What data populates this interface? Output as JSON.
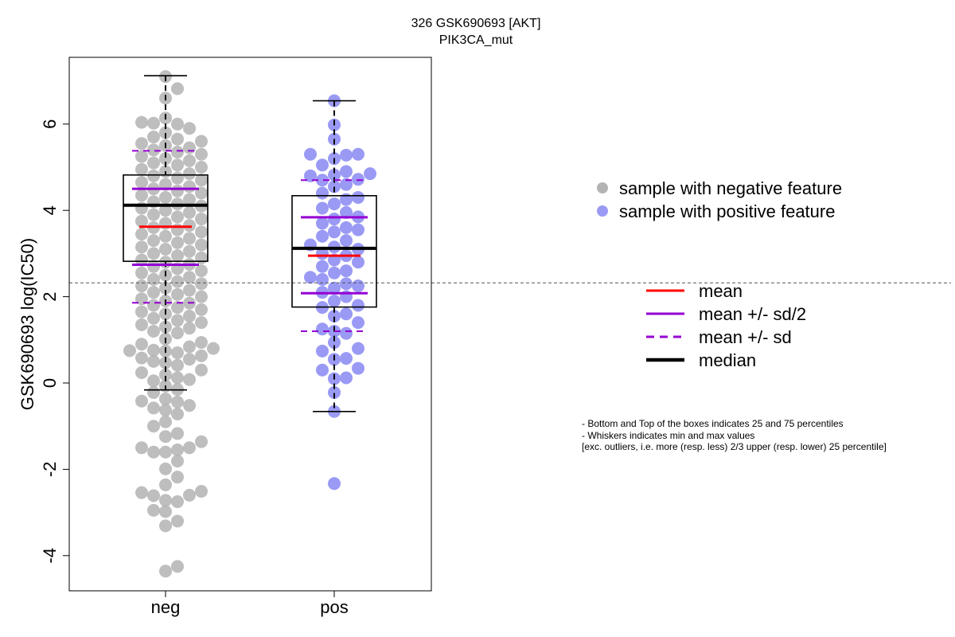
{
  "chart_data": {
    "type": "scatter",
    "title": [
      "326 GSK690693 [AKT]",
      "PIK3CA_mut"
    ],
    "ylabel": "GSK690693 log(IC50)",
    "xlabel": "",
    "categories": [
      "neg",
      "pos"
    ],
    "ylim": [
      -4.8,
      7.6
    ],
    "yticks": [
      -4,
      -2,
      0,
      2,
      4,
      6
    ],
    "reference_line": 2.32,
    "grid": false,
    "colors": {
      "neg": "#b3b3b3",
      "pos": "#9a9af5",
      "mean": "#ff0000",
      "sd": "#9400d3",
      "median": "#000000"
    },
    "boxes": [
      {
        "name": "neg",
        "whisker_low": -0.16,
        "q1": 2.82,
        "median": 4.12,
        "q3": 4.82,
        "whisker_high": 7.12,
        "mean": 3.62,
        "mean_minus_half_sd": 2.74,
        "mean_plus_half_sd": 4.5,
        "mean_minus_sd": 1.86,
        "mean_plus_sd": 5.38
      },
      {
        "name": "pos",
        "whisker_low": -0.66,
        "q1": 1.76,
        "median": 3.12,
        "q3": 4.34,
        "whisker_high": 6.54,
        "mean": 2.95,
        "mean_minus_half_sd": 2.08,
        "mean_plus_half_sd": 3.84,
        "mean_minus_sd": 1.2,
        "mean_plus_sd": 4.7
      }
    ],
    "points": {
      "neg": [
        -4.36,
        -4.25,
        -3.31,
        -3.2,
        -2.98,
        -2.95,
        -2.75,
        -2.72,
        -2.61,
        -2.6,
        -2.54,
        -2.51,
        -2.36,
        -2.18,
        -1.99,
        -1.81,
        -1.6,
        -1.6,
        -1.55,
        -1.5,
        -1.5,
        -1.36,
        -1.24,
        -1.17,
        -1.0,
        -0.9,
        -0.72,
        -0.63,
        -0.58,
        -0.52,
        -0.44,
        -0.42,
        -0.37,
        -0.22,
        -0.15,
        -0.07,
        0.05,
        0.08,
        0.12,
        0.19,
        0.24,
        0.3,
        0.41,
        0.47,
        0.5,
        0.55,
        0.58,
        0.63,
        0.7,
        0.74,
        0.75,
        0.76,
        0.8,
        0.84,
        0.9,
        0.94,
        1.02,
        1.16,
        1.2,
        1.27,
        1.3,
        1.35,
        1.4,
        1.45,
        1.5,
        1.55,
        1.6,
        1.65,
        1.7,
        1.75,
        1.8,
        1.85,
        1.9,
        1.95,
        2.0,
        2.05,
        2.1,
        2.15,
        2.2,
        2.25,
        2.3,
        2.35,
        2.4,
        2.45,
        2.5,
        2.55,
        2.6,
        2.65,
        2.7,
        2.75,
        2.8,
        2.85,
        2.9,
        2.95,
        3.0,
        3.05,
        3.1,
        3.15,
        3.2,
        3.25,
        3.3,
        3.35,
        3.4,
        3.45,
        3.5,
        3.55,
        3.6,
        3.65,
        3.7,
        3.75,
        3.8,
        3.85,
        3.9,
        3.95,
        4.0,
        4.05,
        4.1,
        4.15,
        4.2,
        4.25,
        4.3,
        4.35,
        4.4,
        4.45,
        4.5,
        4.55,
        4.6,
        4.65,
        4.7,
        4.75,
        4.8,
        4.85,
        4.9,
        4.95,
        5.0,
        5.05,
        5.1,
        5.15,
        5.2,
        5.25,
        5.3,
        5.35,
        5.4,
        5.45,
        5.5,
        5.55,
        5.6,
        5.65,
        5.7,
        5.8,
        5.9,
        6.0,
        6.02,
        6.04,
        6.14,
        6.6,
        6.82,
        7.1
      ],
      "pos": [
        -2.33,
        -0.66,
        -0.22,
        0.1,
        0.12,
        0.3,
        0.34,
        0.55,
        0.57,
        0.74,
        0.8,
        0.94,
        1.15,
        1.2,
        1.25,
        1.4,
        1.55,
        1.6,
        1.75,
        1.8,
        1.9,
        2.0,
        2.1,
        2.2,
        2.25,
        2.3,
        2.4,
        2.45,
        2.55,
        2.6,
        2.7,
        2.8,
        2.85,
        2.95,
        3.0,
        3.1,
        3.15,
        3.2,
        3.3,
        3.4,
        3.5,
        3.55,
        3.6,
        3.7,
        3.8,
        3.85,
        3.95,
        4.05,
        4.15,
        4.25,
        4.3,
        4.4,
        4.55,
        4.6,
        4.7,
        4.72,
        4.8,
        4.82,
        4.85,
        4.9,
        5.05,
        5.2,
        5.28,
        5.3,
        5.3,
        5.65,
        5.98,
        6.54
      ]
    },
    "legend": {
      "position": "right",
      "points": [
        "sample with negative feature",
        "sample with positive feature"
      ],
      "lines": [
        "mean",
        "mean +/- sd/2",
        "mean +/- sd",
        "median"
      ]
    },
    "notes": [
      "- Bottom and Top of the boxes indicates 25 and 75 percentiles",
      "- Whiskers indicates min and max values",
      "[exc. outliers, i.e. more (resp. less) 2/3 upper (resp. lower) 25 percentile]"
    ]
  }
}
